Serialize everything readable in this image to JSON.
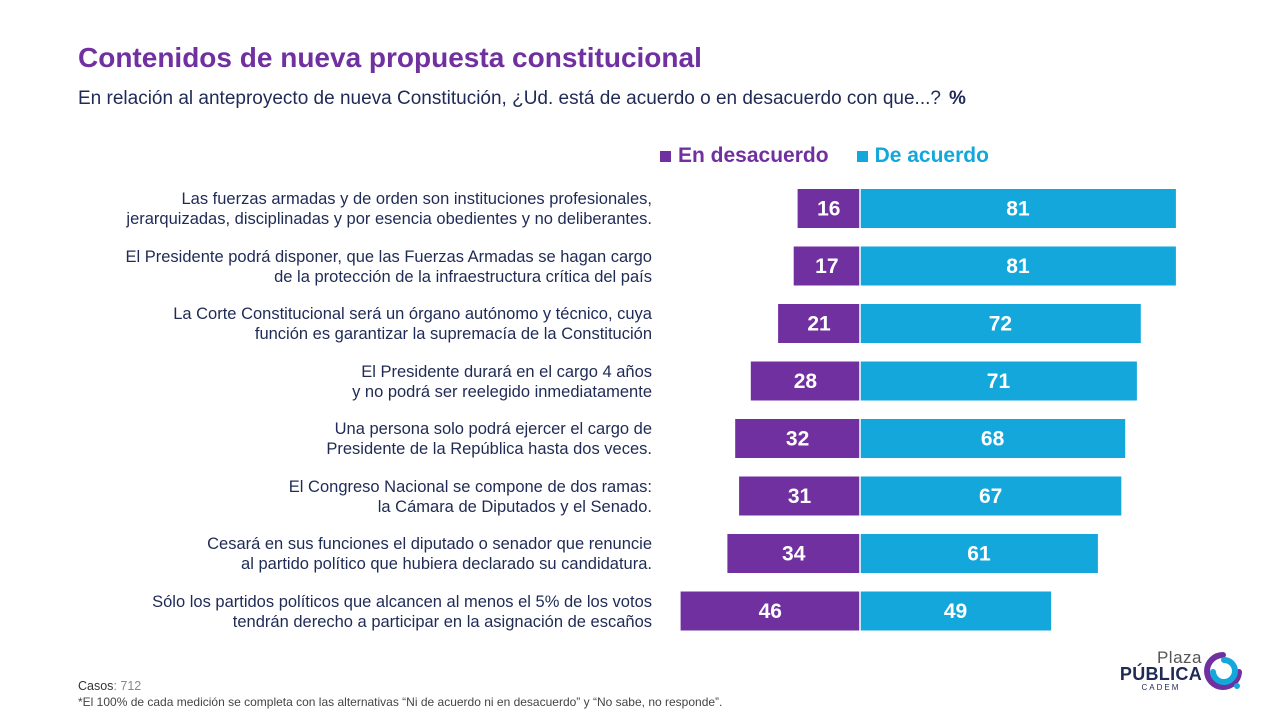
{
  "colors": {
    "purple": "#7030a0",
    "blue": "#14a7db",
    "text": "#1f2a55"
  },
  "header": {
    "title": "Contenidos de nueva propuesta constitucional",
    "subtitle": "En relación al anteproyecto de nueva Constitución, ¿Ud. está de acuerdo o en desacuerdo con que...?",
    "unit": "%"
  },
  "legend": {
    "disagree": "En desacuerdo",
    "agree": "De acuerdo"
  },
  "chart_data": {
    "type": "bar",
    "orientation": "horizontal-diverging",
    "title": "Contenidos de nueva propuesta constitucional",
    "categories": [
      [
        "Las fuerzas armadas y de orden son instituciones profesionales,",
        "jerarquizadas, disciplinadas y por esencia obedientes y no deliberantes."
      ],
      [
        "El Presidente podrá disponer, que las Fuerzas Armadas se hagan cargo",
        "de la protección de la infraestructura crítica del país"
      ],
      [
        "La Corte Constitucional será un órgano autónomo y técnico, cuya",
        "función es garantizar la supremacía de la Constitución"
      ],
      [
        "El Presidente durará en el cargo 4 años",
        "y no podrá ser reelegido inmediatamente"
      ],
      [
        "Una persona solo podrá ejercer el cargo de",
        "Presidente de la República hasta dos veces."
      ],
      [
        "El Congreso Nacional se compone de dos ramas:",
        "la Cámara de Diputados y el Senado."
      ],
      [
        "Cesará en sus funciones el diputado o senador que renuncie",
        "al partido político que hubiera declarado su candidatura."
      ],
      [
        "Sólo los partidos políticos que alcancen al menos el 5% de los votos",
        "tendrán derecho a participar en la asignación de escaños"
      ]
    ],
    "series": [
      {
        "name": "En desacuerdo",
        "color": "#7030a0",
        "values": [
          16,
          17,
          21,
          28,
          32,
          31,
          34,
          46
        ]
      },
      {
        "name": "De acuerdo",
        "color": "#14a7db",
        "values": [
          81,
          81,
          72,
          71,
          68,
          67,
          61,
          49
        ]
      }
    ],
    "legend_position": "top"
  },
  "footer": {
    "casos_label": "Casos",
    "casos_value": ": 712",
    "note": "*El 100% de cada medición se completa con las alternativas “Ni de acuerdo ni en desacuerdo” y “No sabe, no responde”."
  },
  "logo": {
    "line1": "Plaza",
    "line2": "PÚBLICA",
    "line3": "CADEM"
  }
}
